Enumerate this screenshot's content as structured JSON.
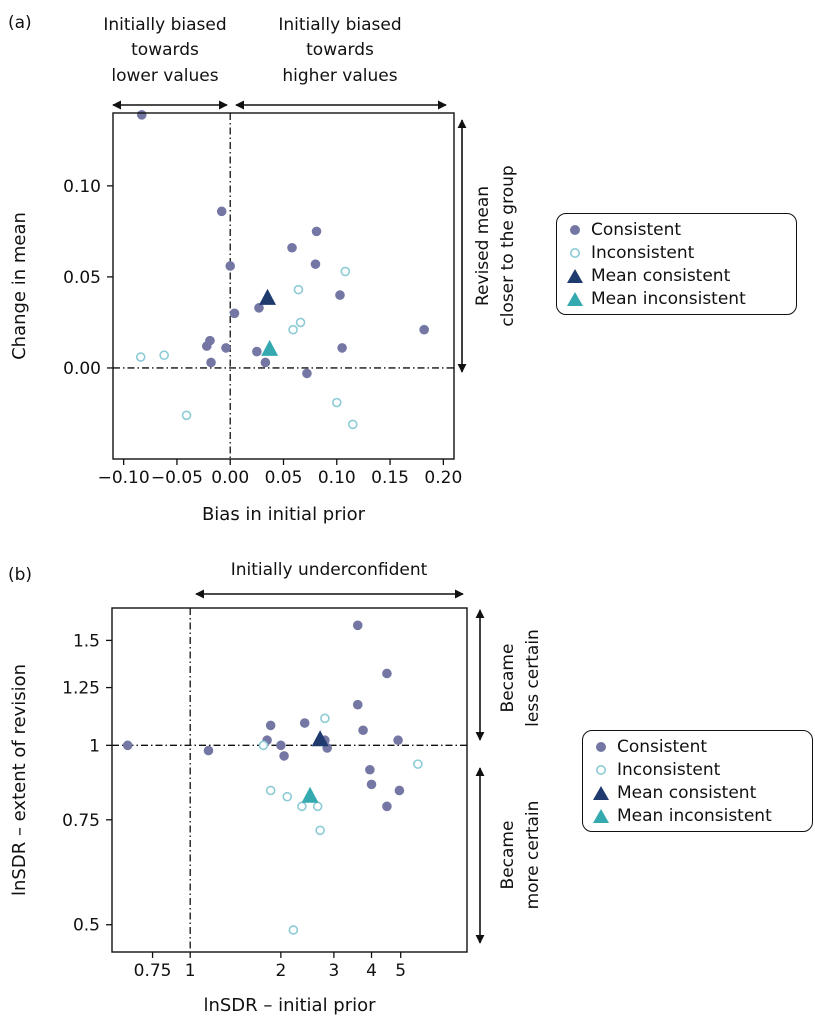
{
  "panel_a": {
    "label": "(a)",
    "annotations": {
      "top_left": [
        "Initially biased",
        "towards",
        "lower values"
      ],
      "top_right": [
        "Initially biased",
        "towards",
        "higher values"
      ],
      "right": [
        "Revised mean",
        "closer to the group"
      ]
    }
  },
  "panel_b": {
    "label": "(b)",
    "annotations": {
      "top": "Initially underconfident",
      "right_upper": [
        "Became",
        "less certain"
      ],
      "right_lower": [
        "Became",
        "more certain"
      ]
    }
  },
  "legend": {
    "consistent": "Consistent",
    "inconsistent": "Inconsistent",
    "mean_consistent": "Mean consistent",
    "mean_inconsistent": "Mean inconsistent"
  },
  "colors": {
    "consistent": "#7477a3",
    "inconsistent": "#8ccbd6",
    "mean_consistent": "#1f3a6e",
    "mean_inconsistent": "#34aab0",
    "axes": "#111111"
  },
  "chart_data": [
    {
      "type": "scatter",
      "title": "",
      "xlabel": "Bias in initial prior",
      "ylabel": "Change in mean",
      "xlim": [
        -0.11,
        0.21
      ],
      "ylim": [
        -0.05,
        0.14
      ],
      "xticks": [
        -0.1,
        -0.05,
        0.0,
        0.05,
        0.1,
        0.15,
        0.2
      ],
      "xtick_labels": [
        "−0.10",
        "−0.05",
        "0.00",
        "0.05",
        "0.10",
        "0.15",
        "0.20"
      ],
      "yticks": [
        0.0,
        0.05,
        0.1
      ],
      "ytick_labels": [
        "0.00",
        "0.05",
        "0.10"
      ],
      "reference_lines": {
        "x": 0.0,
        "y": 0.0
      },
      "legend_position": "right",
      "series": [
        {
          "name": "Consistent",
          "marker": "filled-circle",
          "points": [
            [
              -0.083,
              0.139
            ],
            [
              -0.008,
              0.086
            ],
            [
              0.0,
              0.056
            ],
            [
              -0.022,
              0.012
            ],
            [
              -0.019,
              0.015
            ],
            [
              -0.018,
              0.003
            ],
            [
              -0.004,
              0.011
            ],
            [
              0.004,
              0.03
            ],
            [
              0.027,
              0.033
            ],
            [
              0.033,
              0.003
            ],
            [
              0.025,
              0.009
            ],
            [
              0.058,
              0.066
            ],
            [
              0.081,
              0.075
            ],
            [
              0.08,
              0.057
            ],
            [
              0.072,
              -0.003
            ],
            [
              0.103,
              0.04
            ],
            [
              0.105,
              0.011
            ],
            [
              0.182,
              0.021
            ]
          ]
        },
        {
          "name": "Inconsistent",
          "marker": "open-circle",
          "points": [
            [
              -0.084,
              0.006
            ],
            [
              -0.062,
              0.007
            ],
            [
              -0.041,
              -0.026
            ],
            [
              0.064,
              0.043
            ],
            [
              0.059,
              0.021
            ],
            [
              0.066,
              0.025
            ],
            [
              0.108,
              0.053
            ],
            [
              0.1,
              -0.019
            ],
            [
              0.115,
              -0.031
            ]
          ]
        },
        {
          "name": "Mean consistent",
          "marker": "triangle",
          "points": [
            [
              0.035,
              0.038
            ]
          ]
        },
        {
          "name": "Mean inconsistent",
          "marker": "triangle",
          "points": [
            [
              0.037,
              0.01
            ]
          ]
        }
      ]
    },
    {
      "type": "scatter",
      "title": "",
      "xlabel": "lnSDR – initial prior",
      "ylabel": "lnSDR – extent of revision",
      "x_scale": "log",
      "y_scale": "log",
      "xlim": [
        0.55,
        8.3
      ],
      "ylim": [
        0.45,
        1.7
      ],
      "xticks": [
        0.75,
        1,
        2,
        3,
        4,
        5
      ],
      "xtick_labels": [
        "0.75",
        "1",
        "2",
        "3",
        "4",
        "5"
      ],
      "yticks": [
        0.5,
        0.75,
        1,
        1.25,
        1.5
      ],
      "ytick_labels": [
        "0.5",
        "0.75",
        "1",
        "1.25",
        "1.5"
      ],
      "reference_lines": {
        "x": 1,
        "y": 1
      },
      "legend_position": "right",
      "series": [
        {
          "name": "Consistent",
          "marker": "filled-circle",
          "points": [
            [
              0.62,
              1.0
            ],
            [
              1.15,
              0.98
            ],
            [
              1.8,
              1.02
            ],
            [
              1.85,
              1.08
            ],
            [
              2.0,
              1.0
            ],
            [
              2.05,
              0.96
            ],
            [
              2.4,
              1.09
            ],
            [
              2.8,
              1.02
            ],
            [
              2.85,
              0.99
            ],
            [
              3.6,
              1.59
            ],
            [
              3.6,
              1.17
            ],
            [
              3.75,
              1.06
            ],
            [
              3.95,
              0.91
            ],
            [
              4.0,
              0.86
            ],
            [
              4.5,
              1.32
            ],
            [
              4.5,
              0.79
            ],
            [
              4.9,
              1.02
            ],
            [
              4.95,
              0.84
            ]
          ]
        },
        {
          "name": "Inconsistent",
          "marker": "open-circle",
          "points": [
            [
              1.75,
              1.0
            ],
            [
              1.85,
              0.84
            ],
            [
              2.1,
              0.82
            ],
            [
              2.35,
              0.79
            ],
            [
              2.65,
              0.79
            ],
            [
              2.7,
              0.72
            ],
            [
              2.8,
              1.11
            ],
            [
              2.2,
              0.49
            ],
            [
              5.7,
              0.93
            ]
          ]
        },
        {
          "name": "Mean consistent",
          "marker": "triangle",
          "points": [
            [
              2.7,
              1.02
            ]
          ]
        },
        {
          "name": "Mean inconsistent",
          "marker": "triangle",
          "points": [
            [
              2.5,
              0.82
            ]
          ]
        }
      ]
    }
  ]
}
